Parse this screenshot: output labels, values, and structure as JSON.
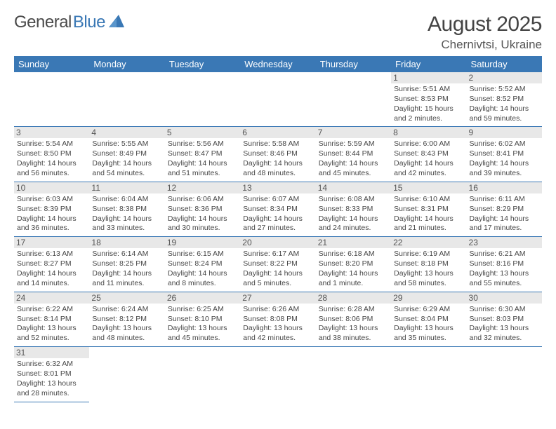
{
  "logo": {
    "part1": "General",
    "part2": "Blue"
  },
  "title": {
    "month": "August 2025",
    "location": "Chernivtsi, Ukraine"
  },
  "colors": {
    "header_bg": "#3a78b5",
    "daybar_bg": "#e8e8e8",
    "border": "#3a78b5",
    "text": "#464646"
  },
  "weekdays": [
    "Sunday",
    "Monday",
    "Tuesday",
    "Wednesday",
    "Thursday",
    "Friday",
    "Saturday"
  ],
  "weeks": [
    [
      null,
      null,
      null,
      null,
      null,
      {
        "n": "1",
        "sunrise": "5:51 AM",
        "sunset": "8:53 PM",
        "daylight": "15 hours and 2 minutes."
      },
      {
        "n": "2",
        "sunrise": "5:52 AM",
        "sunset": "8:52 PM",
        "daylight": "14 hours and 59 minutes."
      }
    ],
    [
      {
        "n": "3",
        "sunrise": "5:54 AM",
        "sunset": "8:50 PM",
        "daylight": "14 hours and 56 minutes."
      },
      {
        "n": "4",
        "sunrise": "5:55 AM",
        "sunset": "8:49 PM",
        "daylight": "14 hours and 54 minutes."
      },
      {
        "n": "5",
        "sunrise": "5:56 AM",
        "sunset": "8:47 PM",
        "daylight": "14 hours and 51 minutes."
      },
      {
        "n": "6",
        "sunrise": "5:58 AM",
        "sunset": "8:46 PM",
        "daylight": "14 hours and 48 minutes."
      },
      {
        "n": "7",
        "sunrise": "5:59 AM",
        "sunset": "8:44 PM",
        "daylight": "14 hours and 45 minutes."
      },
      {
        "n": "8",
        "sunrise": "6:00 AM",
        "sunset": "8:43 PM",
        "daylight": "14 hours and 42 minutes."
      },
      {
        "n": "9",
        "sunrise": "6:02 AM",
        "sunset": "8:41 PM",
        "daylight": "14 hours and 39 minutes."
      }
    ],
    [
      {
        "n": "10",
        "sunrise": "6:03 AM",
        "sunset": "8:39 PM",
        "daylight": "14 hours and 36 minutes."
      },
      {
        "n": "11",
        "sunrise": "6:04 AM",
        "sunset": "8:38 PM",
        "daylight": "14 hours and 33 minutes."
      },
      {
        "n": "12",
        "sunrise": "6:06 AM",
        "sunset": "8:36 PM",
        "daylight": "14 hours and 30 minutes."
      },
      {
        "n": "13",
        "sunrise": "6:07 AM",
        "sunset": "8:34 PM",
        "daylight": "14 hours and 27 minutes."
      },
      {
        "n": "14",
        "sunrise": "6:08 AM",
        "sunset": "8:33 PM",
        "daylight": "14 hours and 24 minutes."
      },
      {
        "n": "15",
        "sunrise": "6:10 AM",
        "sunset": "8:31 PM",
        "daylight": "14 hours and 21 minutes."
      },
      {
        "n": "16",
        "sunrise": "6:11 AM",
        "sunset": "8:29 PM",
        "daylight": "14 hours and 17 minutes."
      }
    ],
    [
      {
        "n": "17",
        "sunrise": "6:13 AM",
        "sunset": "8:27 PM",
        "daylight": "14 hours and 14 minutes."
      },
      {
        "n": "18",
        "sunrise": "6:14 AM",
        "sunset": "8:25 PM",
        "daylight": "14 hours and 11 minutes."
      },
      {
        "n": "19",
        "sunrise": "6:15 AM",
        "sunset": "8:24 PM",
        "daylight": "14 hours and 8 minutes."
      },
      {
        "n": "20",
        "sunrise": "6:17 AM",
        "sunset": "8:22 PM",
        "daylight": "14 hours and 5 minutes."
      },
      {
        "n": "21",
        "sunrise": "6:18 AM",
        "sunset": "8:20 PM",
        "daylight": "14 hours and 1 minute."
      },
      {
        "n": "22",
        "sunrise": "6:19 AM",
        "sunset": "8:18 PM",
        "daylight": "13 hours and 58 minutes."
      },
      {
        "n": "23",
        "sunrise": "6:21 AM",
        "sunset": "8:16 PM",
        "daylight": "13 hours and 55 minutes."
      }
    ],
    [
      {
        "n": "24",
        "sunrise": "6:22 AM",
        "sunset": "8:14 PM",
        "daylight": "13 hours and 52 minutes."
      },
      {
        "n": "25",
        "sunrise": "6:24 AM",
        "sunset": "8:12 PM",
        "daylight": "13 hours and 48 minutes."
      },
      {
        "n": "26",
        "sunrise": "6:25 AM",
        "sunset": "8:10 PM",
        "daylight": "13 hours and 45 minutes."
      },
      {
        "n": "27",
        "sunrise": "6:26 AM",
        "sunset": "8:08 PM",
        "daylight": "13 hours and 42 minutes."
      },
      {
        "n": "28",
        "sunrise": "6:28 AM",
        "sunset": "8:06 PM",
        "daylight": "13 hours and 38 minutes."
      },
      {
        "n": "29",
        "sunrise": "6:29 AM",
        "sunset": "8:04 PM",
        "daylight": "13 hours and 35 minutes."
      },
      {
        "n": "30",
        "sunrise": "6:30 AM",
        "sunset": "8:03 PM",
        "daylight": "13 hours and 32 minutes."
      }
    ],
    [
      {
        "n": "31",
        "sunrise": "6:32 AM",
        "sunset": "8:01 PM",
        "daylight": "13 hours and 28 minutes."
      },
      null,
      null,
      null,
      null,
      null,
      null
    ]
  ],
  "labels": {
    "sunrise": "Sunrise:",
    "sunset": "Sunset:",
    "daylight": "Daylight:"
  }
}
